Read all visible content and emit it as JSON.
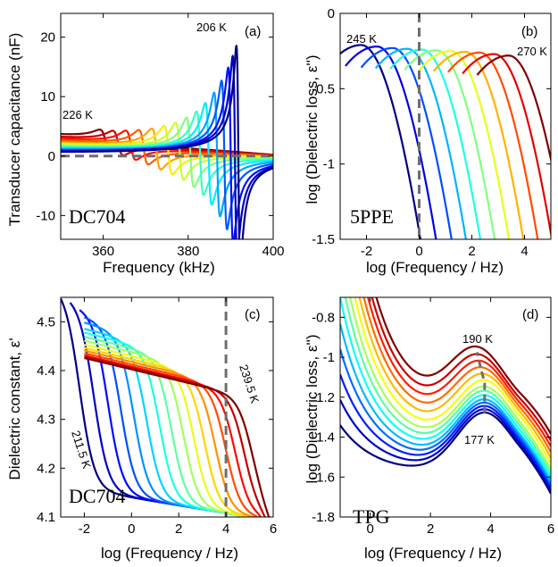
{
  "chart_data": [
    {
      "panel": "(a)",
      "type": "line",
      "sample": "DC704",
      "xlabel": "Frequency (kHz)",
      "ylabel": "Transducer capacitance (nF)",
      "xlim": [
        350,
        400
      ],
      "ylim": [
        -14,
        24
      ],
      "xticks": [
        360,
        380,
        400
      ],
      "yticks": [
        -10,
        0,
        10,
        20
      ],
      "annotations": [
        "206 K",
        "226 K"
      ],
      "colormap": "jet",
      "dashed_reference": {
        "y": 0,
        "color": "#6e6e6e"
      },
      "series": [
        {
          "resonance_khz": 360.5,
          "peak_nF": 1.7,
          "dip_nF": -1.7,
          "offset_nF": 3.3
        },
        {
          "resonance_khz": 363.5,
          "peak_nF": 2.0,
          "dip_nF": -2.0,
          "offset_nF": 2.9
        },
        {
          "resonance_khz": 366.5,
          "peak_nF": 2.3,
          "dip_nF": -2.5,
          "offset_nF": 2.6
        },
        {
          "resonance_khz": 369.5,
          "peak_nF": 2.7,
          "dip_nF": -3.0,
          "offset_nF": 2.3
        },
        {
          "resonance_khz": 372.5,
          "peak_nF": 3.2,
          "dip_nF": -3.6,
          "offset_nF": 2.0
        },
        {
          "resonance_khz": 375.3,
          "peak_nF": 3.8,
          "dip_nF": -4.3,
          "offset_nF": 1.8
        },
        {
          "resonance_khz": 378.0,
          "peak_nF": 4.6,
          "dip_nF": -5.0,
          "offset_nF": 1.6
        },
        {
          "resonance_khz": 380.5,
          "peak_nF": 5.6,
          "dip_nF": -6.0,
          "offset_nF": 1.4
        },
        {
          "resonance_khz": 382.8,
          "peak_nF": 6.8,
          "dip_nF": -7.2,
          "offset_nF": 1.2
        },
        {
          "resonance_khz": 384.8,
          "peak_nF": 8.5,
          "dip_nF": -8.6,
          "offset_nF": 1.0
        },
        {
          "resonance_khz": 386.8,
          "peak_nF": 10.5,
          "dip_nF": -10.3,
          "offset_nF": 0.8
        },
        {
          "resonance_khz": 388.5,
          "peak_nF": 13.0,
          "dip_nF": -12.0,
          "offset_nF": 0.6
        },
        {
          "resonance_khz": 390.0,
          "peak_nF": 16.0,
          "dip_nF": -13.5,
          "offset_nF": 0.5
        },
        {
          "resonance_khz": 391.0,
          "peak_nF": 19.0,
          "dip_nF": -14.5,
          "offset_nF": 0.4
        },
        {
          "resonance_khz": 391.8,
          "peak_nF": 21.5,
          "dip_nF": -15.5,
          "offset_nF": 0.3
        }
      ]
    },
    {
      "panel": "(b)",
      "type": "line",
      "sample": "5PPE",
      "xlabel": "log (Frequency / Hz)",
      "ylabel": "log (Dielectric loss, ε'')",
      "xlim": [
        -3,
        5
      ],
      "ylim": [
        -1.5,
        0
      ],
      "xticks": [
        -2,
        0,
        2,
        4
      ],
      "yticks": [
        -1.5,
        -1,
        -0.5,
        0
      ],
      "annotations": [
        "245 K",
        "270 K"
      ],
      "colormap": "jet",
      "dashed_reference": {
        "x": 0,
        "color": "#6e6e6e"
      },
      "series": [
        {
          "peak_log_f": -2.2,
          "peak_log_eps": -0.21
        },
        {
          "peak_log_f": -1.6,
          "peak_log_eps": -0.22
        },
        {
          "peak_log_f": -1.0,
          "peak_log_eps": -0.23
        },
        {
          "peak_log_f": -0.45,
          "peak_log_eps": -0.235
        },
        {
          "peak_log_f": 0.1,
          "peak_log_eps": -0.24
        },
        {
          "peak_log_f": 0.65,
          "peak_log_eps": -0.245
        },
        {
          "peak_log_f": 1.2,
          "peak_log_eps": -0.25
        },
        {
          "peak_log_f": 1.75,
          "peak_log_eps": -0.255
        },
        {
          "peak_log_f": 2.3,
          "peak_log_eps": -0.26
        },
        {
          "peak_log_f": 2.85,
          "peak_log_eps": -0.27
        },
        {
          "peak_log_f": 3.4,
          "peak_log_eps": -0.28
        }
      ]
    },
    {
      "panel": "(c)",
      "type": "line",
      "sample": "DC704",
      "xlabel": "log (Frequency / Hz)",
      "ylabel": "Dielectric constant, ε'",
      "xlim": [
        -3,
        6
      ],
      "ylim": [
        4.1,
        4.55
      ],
      "xticks": [
        -2,
        0,
        2,
        4,
        6
      ],
      "yticks": [
        4.1,
        4.2,
        4.3,
        4.4,
        4.5
      ],
      "annotations": [
        "239.5 K",
        "211.5 K"
      ],
      "colormap": "jet",
      "dashed_reference": {
        "x": 4,
        "color": "#6e6e6e"
      },
      "eps_infinity": 4.1,
      "series": [
        {
          "start_log_f": -3.0,
          "step_log_f": -2.2,
          "eps_static": 4.55
        },
        {
          "start_log_f": -2.6,
          "step_log_f": -1.6,
          "eps_static": 4.53
        },
        {
          "start_log_f": -2.2,
          "step_log_f": -1.0,
          "eps_static": 4.51
        },
        {
          "start_log_f": -2.0,
          "step_log_f": -0.45,
          "eps_static": 4.49
        },
        {
          "start_log_f": -2.0,
          "step_log_f": 0.1,
          "eps_static": 4.475
        },
        {
          "start_log_f": -2.0,
          "step_log_f": 0.65,
          "eps_static": 4.46
        },
        {
          "start_log_f": -2.0,
          "step_log_f": 1.2,
          "eps_static": 4.45
        },
        {
          "start_log_f": -2.0,
          "step_log_f": 1.7,
          "eps_static": 4.44
        },
        {
          "start_log_f": -2.0,
          "step_log_f": 2.2,
          "eps_static": 4.43
        },
        {
          "start_log_f": -2.0,
          "step_log_f": 2.65,
          "eps_static": 4.42
        },
        {
          "start_log_f": -2.0,
          "step_log_f": 3.1,
          "eps_static": 4.412
        },
        {
          "start_log_f": -2.0,
          "step_log_f": 3.55,
          "eps_static": 4.405
        },
        {
          "start_log_f": -2.0,
          "step_log_f": 4.0,
          "eps_static": 4.398
        },
        {
          "start_log_f": -2.0,
          "step_log_f": 4.4,
          "eps_static": 4.392
        },
        {
          "start_log_f": -2.0,
          "step_log_f": 4.8,
          "eps_static": 4.388
        },
        {
          "start_log_f": -2.0,
          "step_log_f": 5.15,
          "eps_static": 4.384
        }
      ]
    },
    {
      "panel": "(d)",
      "type": "line",
      "sample": "TPG",
      "xlabel": "log (Frequency / Hz)",
      "ylabel": "log (Dielectric loss, ε'')",
      "xlim": [
        -1,
        6
      ],
      "ylim": [
        -1.8,
        -0.7
      ],
      "xticks": [
        0,
        2,
        4,
        6
      ],
      "yticks": [
        -1.8,
        -1.6,
        -1.4,
        -1.2,
        -1,
        -0.8
      ],
      "annotations": [
        "190 K",
        "177 K"
      ],
      "colormap": "jet",
      "dashed_reference": {
        "curve": "peak locus",
        "color": "#6e6e6e"
      },
      "series": [
        {
          "peak_log_f": 3.8,
          "peak_log_eps": -1.28
        },
        {
          "peak_log_f": 3.8,
          "peak_log_eps": -1.265
        },
        {
          "peak_log_f": 3.8,
          "peak_log_eps": -1.25
        },
        {
          "peak_log_f": 3.8,
          "peak_log_eps": -1.235
        },
        {
          "peak_log_f": 3.8,
          "peak_log_eps": -1.22
        },
        {
          "peak_log_f": 3.8,
          "peak_log_eps": -1.2
        },
        {
          "peak_log_f": 3.8,
          "peak_log_eps": -1.18
        },
        {
          "peak_log_f": 3.8,
          "peak_log_eps": -1.16
        },
        {
          "peak_log_f": 3.8,
          "peak_log_eps": -1.13
        },
        {
          "peak_log_f": 3.75,
          "peak_log_eps": -1.1
        },
        {
          "peak_log_f": 3.7,
          "peak_log_eps": -1.07
        },
        {
          "peak_log_f": 3.65,
          "peak_log_eps": -1.04
        },
        {
          "peak_log_f": 3.6,
          "peak_log_eps": -1.01
        },
        {
          "peak_log_f": 3.55,
          "peak_log_eps": -0.975
        }
      ]
    }
  ]
}
